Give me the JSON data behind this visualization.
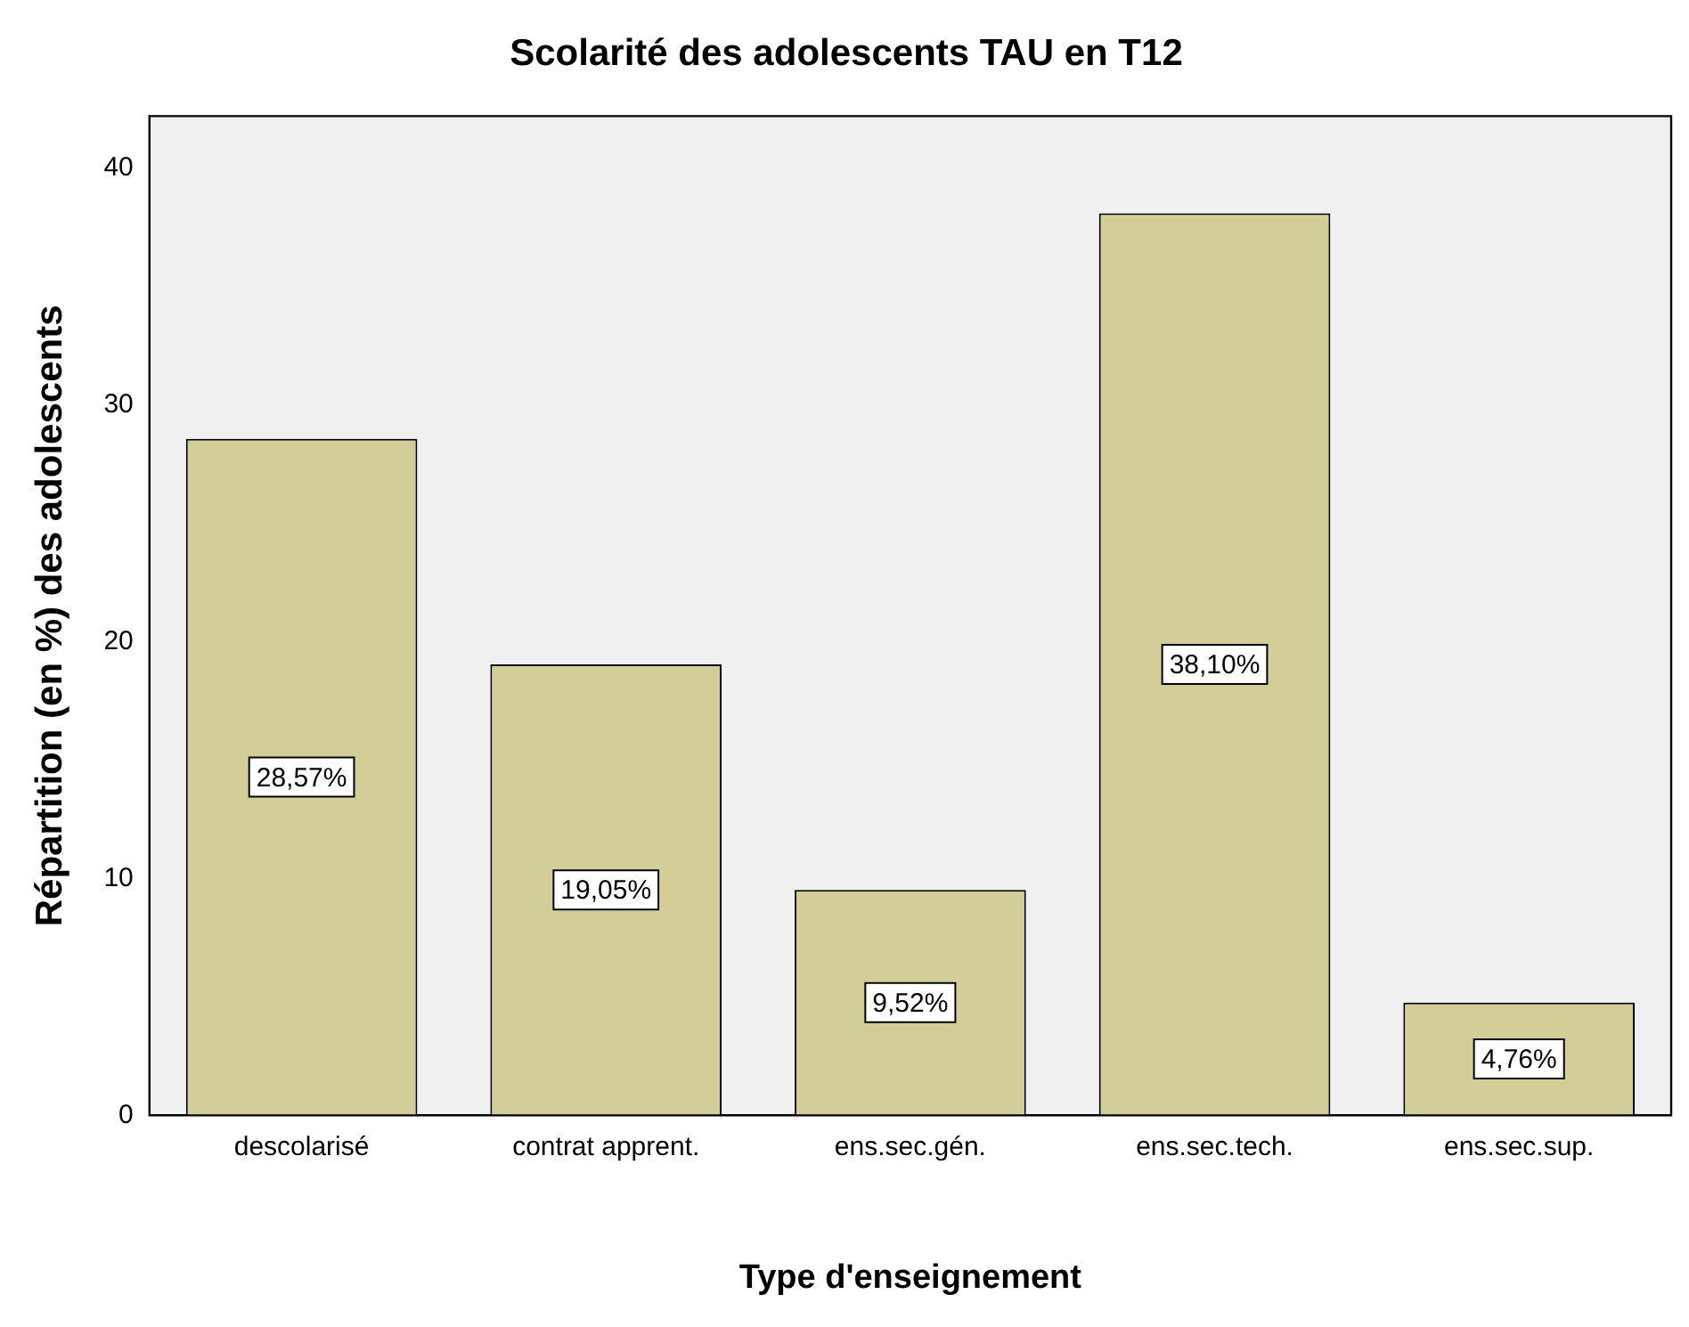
{
  "chart_data": {
    "type": "bar",
    "title": "Scolarité des adolescents TAU en T12",
    "xlabel": "Type d'enseignement",
    "ylabel": "Répartition (en %) des adolescents",
    "categories": [
      "descolarisé",
      "contrat apprent.",
      "ens.sec.gén.",
      "ens.sec.tech.",
      "ens.sec.sup."
    ],
    "values": [
      28.57,
      19.05,
      9.52,
      38.1,
      4.76
    ],
    "value_labels": [
      "28,57%",
      "19,05%",
      "9,52%",
      "38,10%",
      "4,76%"
    ],
    "color": "#d3ce98",
    "ylim": [
      0,
      42.2
    ],
    "yticks": [
      0,
      10,
      20,
      30,
      40
    ],
    "grid": false,
    "legend": false
  }
}
